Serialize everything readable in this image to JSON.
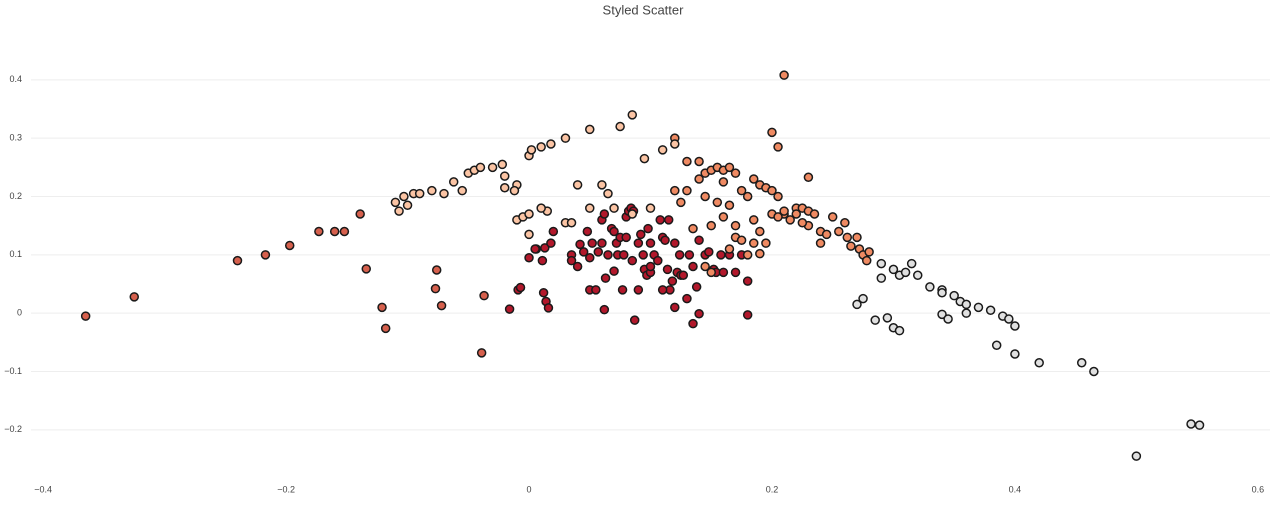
{
  "chart_data": {
    "type": "scatter",
    "title": "Styled Scatter",
    "xlim": [
      -0.41,
      0.61
    ],
    "ylim": [
      -0.286,
      0.434
    ],
    "xticks": [
      {
        "value": -0.4,
        "label": "−0.4"
      },
      {
        "value": -0.2,
        "label": "−0.2"
      },
      0,
      0.2,
      0.4,
      0.6
    ],
    "yticks": [
      {
        "value": -0.2,
        "label": "−0.2"
      },
      {
        "value": -0.1,
        "label": "−0.1"
      },
      0,
      0.1,
      0.2,
      0.3,
      0.4
    ],
    "grid": true,
    "series": [
      {
        "color": "#d6604d",
        "x": [
          -0.365,
          -0.325,
          -0.24,
          -0.217,
          -0.197,
          -0.173,
          -0.16,
          -0.152,
          -0.139,
          -0.134,
          -0.121,
          -0.118,
          -0.076,
          -0.077,
          -0.072,
          -0.037,
          -0.039
        ],
        "values": [
          -0.005,
          0.028,
          0.09,
          0.1,
          0.116,
          0.14,
          0.14,
          0.14,
          0.17,
          0.076,
          0.01,
          -0.026,
          0.074,
          0.042,
          0.013,
          0.03,
          -0.068
        ]
      },
      {
        "color": "#b2182b",
        "x": [
          -0.016,
          -0.009,
          -0.007,
          0.012,
          0.014,
          0.016,
          0.006,
          0.011,
          0.0,
          0.005,
          0.013,
          0.02,
          0.018,
          0.035,
          0.035,
          0.04,
          0.042,
          0.045,
          0.048,
          0.05,
          0.052,
          0.055,
          0.057,
          0.06,
          0.062,
          0.063,
          0.065,
          0.068,
          0.07,
          0.072,
          0.073,
          0.075,
          0.078,
          0.08,
          0.082,
          0.084,
          0.086,
          0.08,
          0.085,
          0.09,
          0.092,
          0.094,
          0.095,
          0.097,
          0.1,
          0.098,
          0.1,
          0.103,
          0.106,
          0.108,
          0.11,
          0.112,
          0.114,
          0.115,
          0.116,
          0.118,
          0.12,
          0.122,
          0.124,
          0.125,
          0.127,
          0.13,
          0.132,
          0.135,
          0.138,
          0.14,
          0.145,
          0.148,
          0.152,
          0.154,
          0.158,
          0.16,
          0.165,
          0.17,
          0.175,
          0.18,
          0.18,
          0.12,
          0.1,
          0.087,
          0.062,
          0.11,
          0.14,
          0.135,
          0.09,
          0.07,
          0.077,
          0.05,
          0.06
        ],
        "values": [
          0.007,
          0.04,
          0.044,
          0.035,
          0.02,
          0.009,
          0.11,
          0.09,
          0.095,
          0.11,
          0.112,
          0.14,
          0.12,
          0.1,
          0.09,
          0.08,
          0.118,
          0.105,
          0.14,
          0.04,
          0.12,
          0.04,
          0.105,
          0.16,
          0.17,
          0.06,
          0.1,
          0.145,
          0.14,
          0.12,
          0.1,
          0.13,
          0.1,
          0.165,
          0.175,
          0.18,
          0.175,
          0.13,
          0.09,
          0.12,
          0.135,
          0.1,
          0.075,
          0.065,
          0.07,
          0.145,
          0.12,
          0.1,
          0.09,
          0.16,
          0.13,
          0.125,
          0.075,
          0.16,
          0.04,
          0.055,
          0.12,
          0.07,
          0.1,
          0.065,
          0.065,
          0.025,
          0.1,
          0.08,
          0.045,
          0.125,
          0.1,
          0.105,
          0.075,
          0.07,
          0.1,
          0.07,
          0.1,
          0.07,
          0.1,
          0.055,
          -0.003,
          0.01,
          0.08,
          -0.012,
          0.006,
          0.04,
          -0.001,
          -0.018,
          0.04,
          0.072,
          0.04,
          0.095,
          0.12
        ]
      },
      {
        "color": "#ef8a62",
        "x": [
          0.13,
          0.12,
          0.14,
          0.14,
          0.145,
          0.15,
          0.155,
          0.16,
          0.165,
          0.17,
          0.175,
          0.18,
          0.185,
          0.19,
          0.195,
          0.2,
          0.205,
          0.21,
          0.215,
          0.22,
          0.225,
          0.23,
          0.235,
          0.24,
          0.245,
          0.25,
          0.255,
          0.26,
          0.262,
          0.265,
          0.27,
          0.272,
          0.275,
          0.278,
          0.28,
          0.15,
          0.16,
          0.165,
          0.17,
          0.175,
          0.18,
          0.185,
          0.19,
          0.195,
          0.2,
          0.205,
          0.145,
          0.155,
          0.165,
          0.17,
          0.12,
          0.125,
          0.13,
          0.135,
          0.16,
          0.22,
          0.23,
          0.21,
          0.2,
          0.205,
          0.23,
          0.185,
          0.19,
          0.145,
          0.15,
          0.21,
          0.225,
          0.24
        ],
        "values": [
          0.26,
          0.3,
          0.26,
          0.23,
          0.24,
          0.245,
          0.25,
          0.245,
          0.25,
          0.24,
          0.21,
          0.2,
          0.23,
          0.22,
          0.215,
          0.21,
          0.2,
          0.17,
          0.16,
          0.18,
          0.18,
          0.175,
          0.17,
          0.14,
          0.135,
          0.165,
          0.14,
          0.155,
          0.13,
          0.115,
          0.13,
          0.11,
          0.1,
          0.09,
          0.105,
          0.15,
          0.165,
          0.11,
          0.13,
          0.125,
          0.1,
          0.16,
          0.14,
          0.12,
          0.17,
          0.165,
          0.2,
          0.19,
          0.185,
          0.15,
          0.21,
          0.19,
          0.21,
          0.145,
          0.225,
          0.17,
          0.15,
          0.408,
          0.31,
          0.285,
          0.233,
          0.12,
          0.102,
          0.08,
          0.07,
          0.175,
          0.155,
          0.12
        ]
      },
      {
        "color": "#fbc4a4",
        "x": [
          -0.11,
          -0.107,
          -0.103,
          -0.1,
          -0.095,
          -0.09,
          -0.08,
          -0.07,
          -0.062,
          -0.055,
          -0.05,
          -0.045,
          -0.04,
          -0.03,
          -0.022,
          -0.02,
          -0.01,
          0.0,
          0.002,
          0.01,
          0.018,
          0.03,
          0.05,
          0.075,
          0.085,
          0.04,
          0.06,
          0.05,
          0.03,
          0.015,
          -0.01,
          -0.005,
          0.0,
          0.01,
          0.065,
          0.07,
          0.085,
          0.1,
          0.095,
          0.11,
          0.12,
          -0.02,
          -0.012,
          0.0,
          0.035
        ],
        "values": [
          0.19,
          0.175,
          0.2,
          0.185,
          0.205,
          0.205,
          0.21,
          0.205,
          0.225,
          0.21,
          0.24,
          0.245,
          0.25,
          0.25,
          0.255,
          0.235,
          0.22,
          0.27,
          0.28,
          0.285,
          0.29,
          0.3,
          0.315,
          0.32,
          0.34,
          0.22,
          0.22,
          0.18,
          0.155,
          0.175,
          0.16,
          0.165,
          0.17,
          0.18,
          0.205,
          0.18,
          0.17,
          0.18,
          0.265,
          0.28,
          0.29,
          0.215,
          0.21,
          0.135,
          0.155
        ]
      },
      {
        "color": "#e0e0e0",
        "x": [
          0.29,
          0.3,
          0.305,
          0.31,
          0.315,
          0.32,
          0.33,
          0.34,
          0.34,
          0.35,
          0.355,
          0.36,
          0.37,
          0.38,
          0.39,
          0.395,
          0.4,
          0.29,
          0.27,
          0.275,
          0.285,
          0.295,
          0.3,
          0.305,
          0.34,
          0.345,
          0.385,
          0.4,
          0.42,
          0.455,
          0.465,
          0.5,
          0.545,
          0.552,
          0.36
        ],
        "values": [
          0.085,
          0.075,
          0.065,
          0.07,
          0.085,
          0.065,
          0.045,
          0.04,
          0.035,
          0.03,
          0.02,
          0.015,
          0.01,
          0.005,
          -0.005,
          -0.01,
          -0.022,
          0.06,
          0.015,
          0.025,
          -0.012,
          -0.008,
          -0.025,
          -0.03,
          -0.002,
          -0.01,
          -0.055,
          -0.07,
          -0.085,
          -0.085,
          -0.1,
          -0.245,
          -0.19,
          -0.192,
          0.0
        ]
      }
    ]
  }
}
